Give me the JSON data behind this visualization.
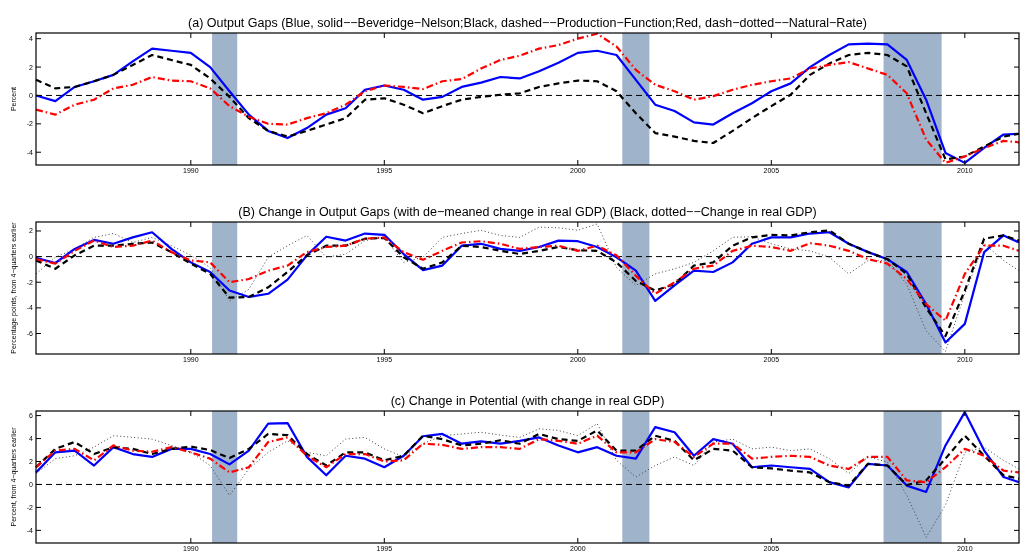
{
  "chart_data": [
    {
      "type": "line",
      "title": "(a) Output Gaps (Blue, solid−−Beveridge−Nelson;Black, dashed−−Production−Function;Red, dash−dotted−−Natural−Rate)",
      "ylabel": "Percent",
      "x": [
        1986,
        1986.5,
        1987,
        1987.5,
        1988,
        1988.5,
        1989,
        1989.5,
        1990,
        1990.5,
        1991,
        1991.5,
        1992,
        1992.5,
        1993,
        1993.5,
        1994,
        1994.5,
        1995,
        1995.5,
        1996,
        1996.5,
        1997,
        1997.5,
        1998,
        1998.5,
        1999,
        1999.5,
        2000,
        2000.5,
        2001,
        2001.5,
        2002,
        2002.5,
        2003,
        2003.5,
        2004,
        2004.5,
        2005,
        2005.5,
        2006,
        2006.5,
        2007,
        2007.5,
        2008,
        2008.5,
        2009,
        2009.5,
        2010,
        2010.5,
        2011,
        2011.4
      ],
      "xlim": [
        1986,
        2011.4
      ],
      "xticks": [
        1990,
        1995,
        2000,
        2005,
        2010
      ],
      "ylim": [
        -4.9,
        4.4
      ],
      "yticks": [
        -4,
        -2,
        0,
        2,
        4
      ],
      "series": [
        {
          "color": "#0000ff",
          "line_style": "solid",
          "values": [
            0,
            -0.4,
            0.6,
            1.0,
            1.45,
            2.4,
            3.3,
            3.15,
            3.0,
            2.0,
            0.3,
            -1.35,
            -2.5,
            -3.0,
            -2.3,
            -1.35,
            -0.9,
            0.4,
            0.7,
            0.4,
            -0.3,
            -0.1,
            0.6,
            0.9,
            1.3,
            1.2,
            1.7,
            2.3,
            3.0,
            3.15,
            2.85,
            1.1,
            -0.65,
            -1.1,
            -1.9,
            -2.05,
            -1.25,
            -0.55,
            0.3,
            0.85,
            2.0,
            2.85,
            3.6,
            3.65,
            3.6,
            2.5,
            -0.3,
            -4.05,
            -4.75,
            -3.7,
            -2.75,
            -2.7
          ]
        },
        {
          "color": "#000000",
          "line_style": "dashed",
          "values": [
            1.1,
            0.5,
            0.6,
            1.0,
            1.45,
            2.15,
            2.85,
            2.5,
            2.15,
            1.2,
            -0.1,
            -1.6,
            -2.5,
            -2.9,
            -2.5,
            -2.05,
            -1.6,
            -0.3,
            -0.2,
            -0.65,
            -1.25,
            -0.75,
            -0.3,
            -0.1,
            0.05,
            0.15,
            0.6,
            0.85,
            1.05,
            1.0,
            0.3,
            -1.25,
            -2.65,
            -2.9,
            -3.2,
            -3.35,
            -2.5,
            -1.6,
            -0.75,
            0.05,
            1.45,
            2.25,
            2.85,
            3.0,
            2.85,
            2.05,
            -1.25,
            -4.5,
            -4.3,
            -3.6,
            -2.9,
            -2.7
          ]
        },
        {
          "color": "#ff0000",
          "line_style": "dashdot",
          "values": [
            -1.0,
            -1.35,
            -0.65,
            -0.3,
            0.5,
            0.75,
            1.3,
            1.05,
            1.0,
            0.5,
            -0.75,
            -1.5,
            -2.0,
            -2.05,
            -1.6,
            -1.25,
            -0.65,
            0.3,
            0.7,
            0.6,
            0.45,
            1.0,
            1.15,
            1.9,
            2.5,
            2.8,
            3.3,
            3.55,
            4.0,
            4.35,
            3.45,
            1.8,
            0.75,
            0.3,
            -0.3,
            -0.05,
            0.4,
            0.75,
            1.0,
            1.2,
            1.9,
            2.15,
            2.35,
            1.9,
            1.45,
            0.15,
            -3.1,
            -4.75,
            -4.3,
            -3.7,
            -3.2,
            -3.3
          ]
        }
      ],
      "ref_lines": [
        {
          "axis": "y",
          "value": 0,
          "color": "#000000",
          "line_style": "dashed"
        }
      ],
      "bands": [
        {
          "axis": "x",
          "from": 1990.55,
          "to": 1991.2,
          "color": "#9fb3cb"
        },
        {
          "axis": "x",
          "from": 2001.15,
          "to": 2001.85,
          "color": "#9fb3cb"
        },
        {
          "axis": "x",
          "from": 2007.9,
          "to": 2009.4,
          "color": "#9fb3cb"
        }
      ]
    },
    {
      "type": "line",
      "title": "(B) Change in Output Gaps (with de−meaned change in real GDP) (Black, dotted−−Change in real GDP)",
      "ylabel": "Percentage points, from 4−quarters earlier",
      "x": [
        1986,
        1986.5,
        1987,
        1987.5,
        1988,
        1988.5,
        1989,
        1989.5,
        1990,
        1990.5,
        1991,
        1991.5,
        1992,
        1992.5,
        1993,
        1993.5,
        1994,
        1994.5,
        1995,
        1995.5,
        1996,
        1996.5,
        1997,
        1997.5,
        1998,
        1998.5,
        1999,
        1999.5,
        2000,
        2000.5,
        2001,
        2001.5,
        2002,
        2002.5,
        2003,
        2003.5,
        2004,
        2004.5,
        2005,
        2005.5,
        2006,
        2006.5,
        2007,
        2007.5,
        2008,
        2008.5,
        2009,
        2009.5,
        2010,
        2010.5,
        2011,
        2011.4
      ],
      "xlim": [
        1986,
        2011.4
      ],
      "xticks": [
        1990,
        1995,
        2000,
        2005,
        2010
      ],
      "ylim": [
        -7.6,
        2.7
      ],
      "yticks": [
        -6,
        -4,
        -2,
        0,
        2
      ],
      "series": [
        {
          "color": "#404040",
          "line_style": "dotted",
          "values": [
            -1.35,
            -0.05,
            0.6,
            1.5,
            1.8,
            1.1,
            1.5,
            0.85,
            0.1,
            -0.85,
            -3.45,
            -2.55,
            -0.05,
            0.85,
            1.65,
            -0.05,
            0.2,
            1.25,
            1.5,
            -0.45,
            -0.05,
            1.5,
            1.8,
            2.05,
            1.65,
            1.5,
            2.3,
            2.25,
            2.05,
            2.55,
            -0.85,
            -2.25,
            -1.35,
            -0.95,
            -0.45,
            0.45,
            1.5,
            1.55,
            1.0,
            0.6,
            0.45,
            -0.05,
            -1.35,
            -0.3,
            -0.3,
            -2.15,
            -5.8,
            -7.4,
            -2.9,
            1.0,
            -0.3,
            -1.1
          ]
        },
        {
          "color": "#0000ff",
          "line_style": "solid",
          "values": [
            -0.1,
            -0.5,
            0.6,
            1.3,
            1.0,
            1.5,
            1.9,
            0.6,
            -0.45,
            -1.2,
            -2.65,
            -3.15,
            -2.9,
            -1.8,
            0.1,
            1.55,
            1.25,
            1.8,
            1.7,
            0.2,
            -1.05,
            -0.7,
            0.85,
            1.0,
            0.6,
            0.45,
            0.75,
            1.25,
            1.2,
            0.75,
            -0.05,
            -1.1,
            -3.45,
            -2.25,
            -1.1,
            -1.2,
            -0.45,
            1.0,
            1.5,
            1.5,
            1.8,
            1.9,
            1.0,
            0.35,
            -0.2,
            -1.2,
            -3.7,
            -6.7,
            -5.25,
            0.35,
            1.65,
            1.1
          ]
        },
        {
          "color": "#000000",
          "line_style": "dashed",
          "values": [
            -0.3,
            -0.95,
            0.1,
            0.85,
            0.85,
            1.0,
            1.1,
            0.35,
            -0.55,
            -1.35,
            -3.2,
            -3.15,
            -2.4,
            -1.2,
            0.1,
            0.85,
            0.85,
            1.4,
            1.45,
            -0.05,
            -0.95,
            -0.45,
            0.85,
            0.75,
            0.45,
            0.2,
            0.45,
            0.75,
            0.5,
            0.45,
            -0.45,
            -1.9,
            -2.65,
            -2.15,
            -0.7,
            -0.45,
            0.85,
            1.5,
            1.7,
            1.65,
            1.9,
            2.05,
            1.0,
            0.35,
            -0.2,
            -1.35,
            -4.0,
            -6.2,
            -2.65,
            1.4,
            1.65,
            1.25
          ]
        },
        {
          "color": "#ff0000",
          "line_style": "dashdot",
          "values": [
            -0.2,
            -0.55,
            0.45,
            1.25,
            0.75,
            0.85,
            1.25,
            0.35,
            -0.3,
            -0.45,
            -2.0,
            -1.75,
            -1.1,
            -0.7,
            0.35,
            0.75,
            0.85,
            1.4,
            1.5,
            0.35,
            -0.25,
            0.45,
            1.1,
            1.2,
            1.0,
            0.6,
            0.75,
            0.85,
            0.45,
            0.85,
            0.1,
            -1.5,
            -2.9,
            -2.0,
            -0.95,
            -0.7,
            0.45,
            0.85,
            0.75,
            0.45,
            1.05,
            0.85,
            0.45,
            -0.2,
            -0.55,
            -1.75,
            -3.7,
            -5.0,
            -1.35,
            0.85,
            0.85,
            0.45
          ]
        }
      ],
      "ref_lines": [
        {
          "axis": "y",
          "value": 0,
          "color": "#000000",
          "line_style": "dashed"
        }
      ],
      "bands": [
        {
          "axis": "x",
          "from": 1990.55,
          "to": 1991.2,
          "color": "#9fb3cb"
        },
        {
          "axis": "x",
          "from": 2001.15,
          "to": 2001.85,
          "color": "#9fb3cb"
        },
        {
          "axis": "x",
          "from": 2007.9,
          "to": 2009.4,
          "color": "#9fb3cb"
        }
      ]
    },
    {
      "type": "line",
      "title": "(c) Change in Potential (with change in real GDP)",
      "ylabel": "Percent, from 4−quarters earlier",
      "x": [
        1986,
        1986.5,
        1987,
        1987.5,
        1988,
        1988.5,
        1989,
        1989.5,
        1990,
        1990.5,
        1991,
        1991.5,
        1992,
        1992.5,
        1993,
        1993.5,
        1994,
        1994.5,
        1995,
        1995.5,
        1996,
        1996.5,
        1997,
        1997.5,
        1998,
        1998.5,
        1999,
        1999.5,
        2000,
        2000.5,
        2001,
        2001.5,
        2002,
        2002.5,
        2003,
        2003.5,
        2004,
        2004.5,
        2005,
        2005.5,
        2006,
        2006.5,
        2007,
        2007.5,
        2008,
        2008.5,
        2009,
        2009.5,
        2010,
        2010.5,
        2011,
        2011.4
      ],
      "xlim": [
        1986,
        2011.4
      ],
      "xticks": [
        1990,
        1995,
        2000,
        2005,
        2010
      ],
      "ylim": [
        -5.1,
        6.4
      ],
      "yticks": [
        -4,
        -2,
        0,
        2,
        4,
        6
      ],
      "series": [
        {
          "color": "#404040",
          "line_style": "dotted",
          "values": [
            0.95,
            2.25,
            2.5,
            3.25,
            4.25,
            4.1,
            3.95,
            3.4,
            2.8,
            1.65,
            -0.95,
            1.35,
            2.8,
            3.8,
            2.8,
            2.5,
            3.95,
            4.1,
            3.1,
            2.4,
            3.55,
            4.25,
            4.4,
            4.55,
            4.3,
            4.1,
            4.85,
            4.7,
            4.25,
            5.3,
            2.1,
            0.65,
            1.65,
            2.4,
            1.65,
            3.7,
            3.95,
            3.1,
            3.25,
            2.95,
            3.1,
            2.25,
            0.95,
            2.4,
            1.95,
            -0.95,
            -4.6,
            -1.8,
            2.8,
            3.25,
            2.1,
            1.35
          ]
        },
        {
          "color": "#0000ff",
          "line_style": "solid",
          "values": [
            1.05,
            2.8,
            2.95,
            1.65,
            3.25,
            2.65,
            2.4,
            3.1,
            3.1,
            2.65,
            1.75,
            2.95,
            5.3,
            5.35,
            2.4,
            0.8,
            2.5,
            2.25,
            1.5,
            2.5,
            4.2,
            4.4,
            3.55,
            3.75,
            3.55,
            3.8,
            4.1,
            3.4,
            2.8,
            3.25,
            2.5,
            2.25,
            5.0,
            4.55,
            2.5,
            3.95,
            3.55,
            1.5,
            1.65,
            1.5,
            1.35,
            0.2,
            -0.25,
            1.8,
            1.65,
            -0.1,
            -0.65,
            3.4,
            6.3,
            2.95,
            0.65,
            0.2
          ]
        },
        {
          "color": "#000000",
          "line_style": "dashed",
          "values": [
            1.5,
            3.1,
            3.7,
            2.65,
            3.25,
            3.1,
            2.65,
            3.1,
            3.3,
            3.0,
            2.3,
            3.1,
            4.4,
            4.3,
            2.65,
            1.65,
            2.8,
            2.8,
            2.1,
            2.5,
            4.25,
            3.95,
            3.4,
            3.55,
            3.85,
            3.55,
            4.4,
            3.95,
            3.8,
            4.7,
            2.95,
            2.95,
            4.25,
            3.8,
            2.1,
            3.1,
            2.95,
            1.5,
            1.4,
            1.2,
            1.05,
            0.2,
            -0.1,
            1.8,
            1.65,
            -0.05,
            0.35,
            2.25,
            4.25,
            2.5,
            0.8,
            0.5
          ]
        },
        {
          "color": "#ff0000",
          "line_style": "dashdot",
          "values": [
            1.5,
            2.95,
            3.1,
            2.1,
            3.4,
            2.95,
            2.85,
            3.25,
            2.8,
            2.25,
            1.05,
            1.5,
            3.7,
            4.1,
            2.5,
            1.5,
            2.65,
            2.65,
            2.0,
            2.1,
            3.55,
            3.45,
            3.1,
            3.25,
            3.25,
            3.1,
            3.95,
            3.8,
            3.55,
            4.25,
            2.8,
            2.8,
            3.95,
            3.7,
            2.4,
            3.55,
            3.55,
            2.25,
            2.4,
            2.5,
            2.4,
            1.65,
            1.35,
            2.4,
            2.4,
            0.35,
            0.2,
            1.5,
            3.1,
            2.5,
            1.2,
            1.05
          ]
        }
      ],
      "ref_lines": [
        {
          "axis": "y",
          "value": 0,
          "color": "#000000",
          "line_style": "dashed"
        }
      ],
      "bands": [
        {
          "axis": "x",
          "from": 1990.55,
          "to": 1991.2,
          "color": "#9fb3cb"
        },
        {
          "axis": "x",
          "from": 2001.15,
          "to": 2001.85,
          "color": "#9fb3cb"
        },
        {
          "axis": "x",
          "from": 2007.9,
          "to": 2009.4,
          "color": "#9fb3cb"
        }
      ]
    }
  ]
}
